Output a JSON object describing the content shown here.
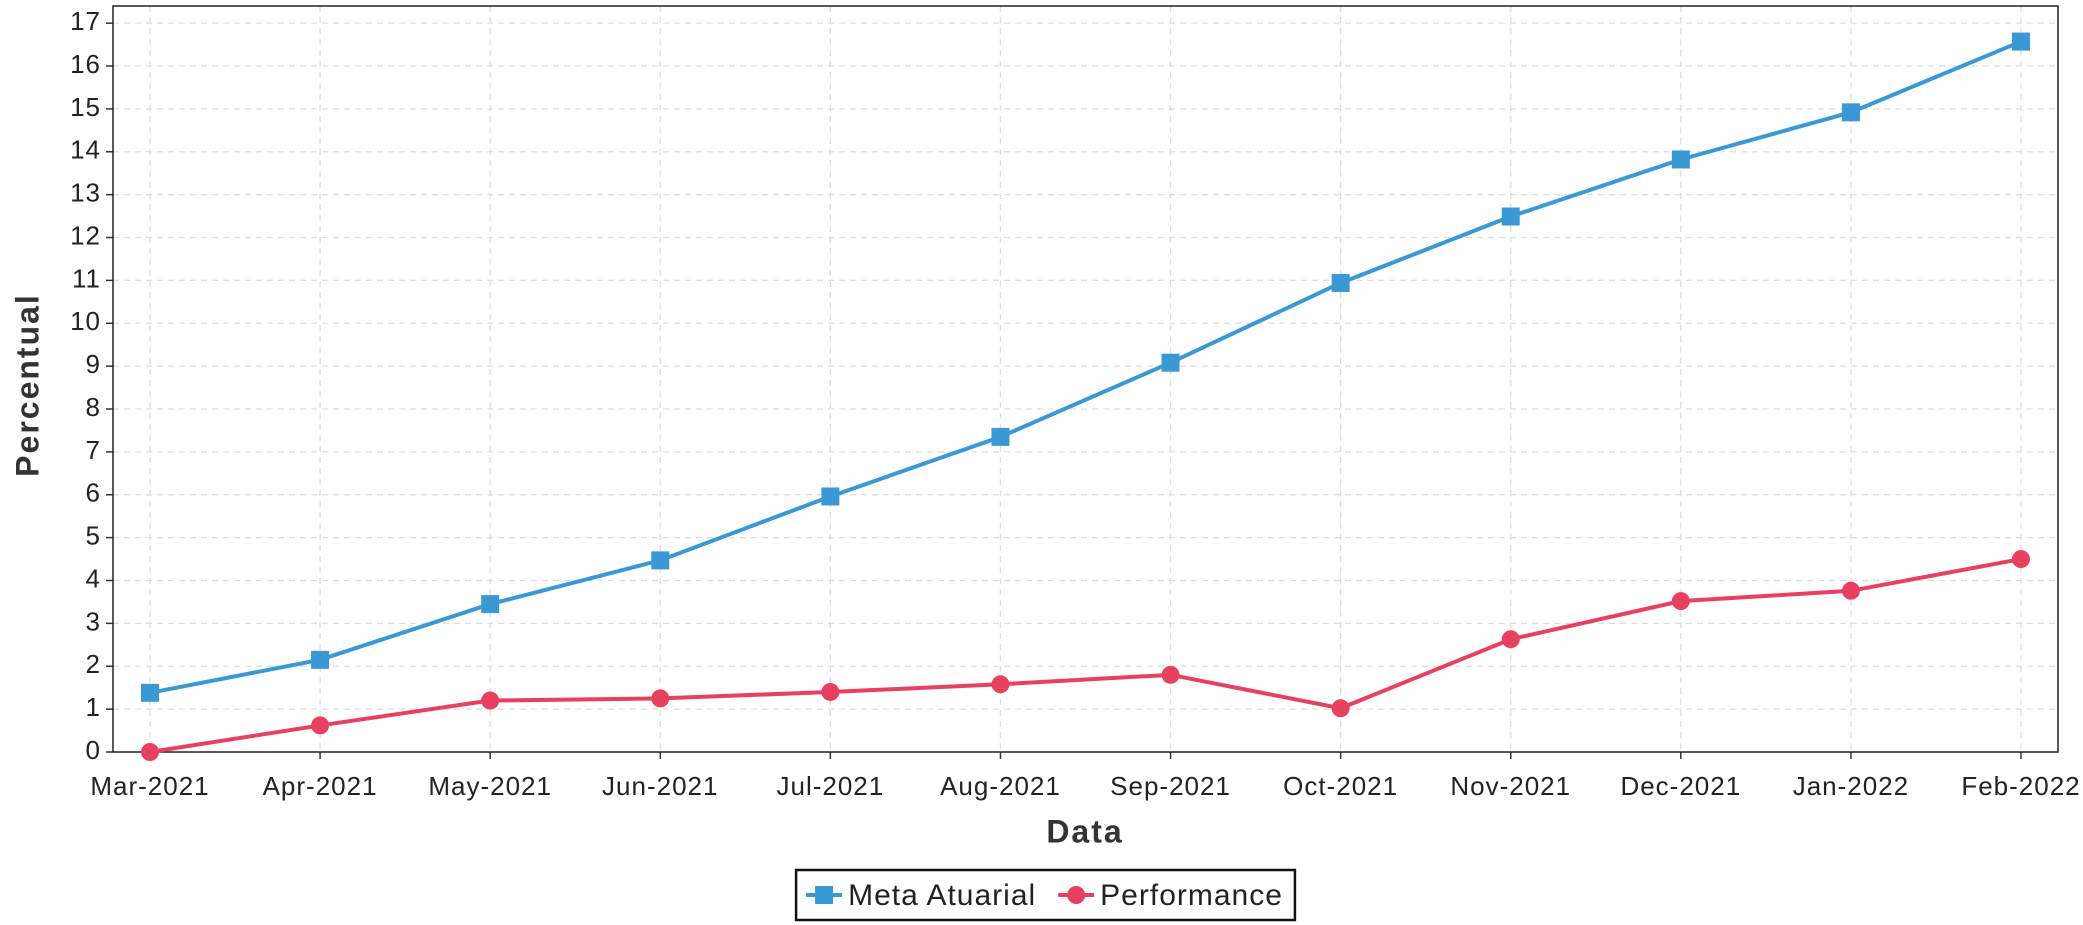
{
  "chart_data": {
    "type": "line",
    "x_label": "Data",
    "y_label": "Percentual",
    "categories": [
      "Mar-2021",
      "Apr-2021",
      "May-2021",
      "Jun-2021",
      "Jul-2021",
      "Aug-2021",
      "Sep-2021",
      "Oct-2021",
      "Nov-2021",
      "Dec-2021",
      "Jan-2022",
      "Feb-2022"
    ],
    "series": [
      {
        "name": "Meta Atuarial",
        "color": "#3a98d4",
        "marker": "square",
        "values": [
          1.38,
          2.15,
          3.45,
          4.47,
          5.96,
          7.35,
          9.08,
          10.94,
          12.49,
          13.82,
          14.92,
          16.57
        ]
      },
      {
        "name": "Performance",
        "color": "#e8405f",
        "marker": "circle",
        "values": [
          0.0,
          0.62,
          1.2,
          1.25,
          1.4,
          1.58,
          1.8,
          1.02,
          2.63,
          3.52,
          3.76,
          4.5
        ]
      }
    ],
    "ylim": [
      0,
      17.4
    ],
    "yticks": [
      0,
      1,
      2,
      3,
      4,
      5,
      6,
      7,
      8,
      9,
      10,
      11,
      12,
      13,
      14,
      15,
      16,
      17
    ],
    "grid": true,
    "legend": "bottom"
  }
}
